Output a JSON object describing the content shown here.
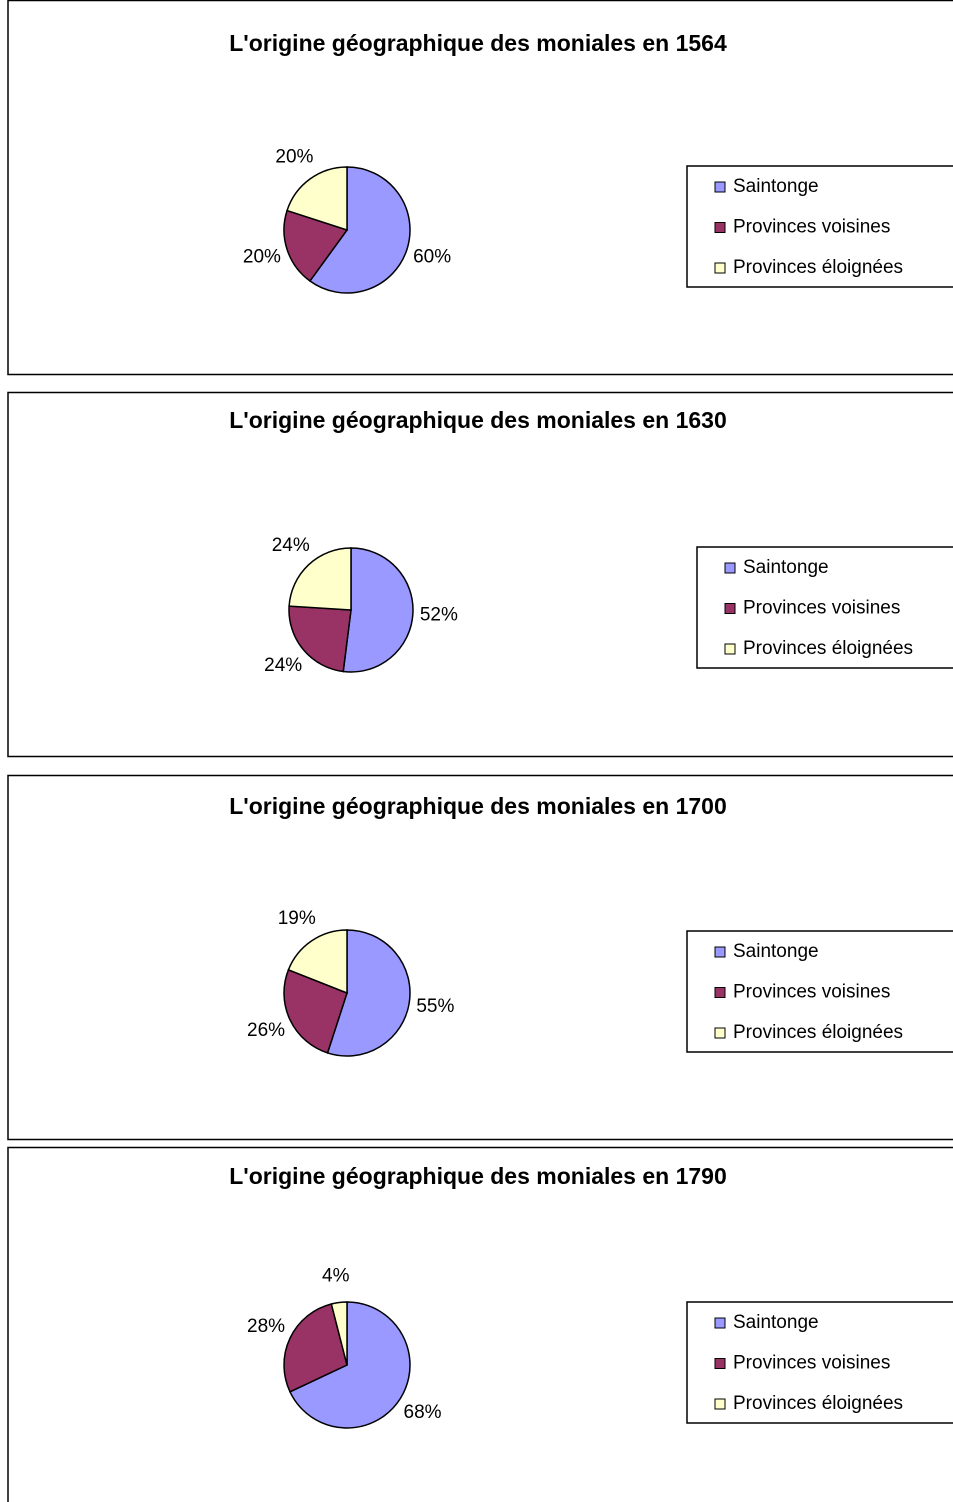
{
  "chart_data": [
    {
      "type": "pie",
      "title": "L'origine géographique des moniales en 1564",
      "categories": [
        "Saintonge",
        "Provinces voisines",
        "Provinces éloignées"
      ],
      "values": [
        60,
        20,
        20
      ],
      "value_labels": [
        "60%",
        "20%",
        "20%"
      ],
      "colors": [
        "#9999ff",
        "#993366",
        "#ffffcc"
      ],
      "legend": "right"
    },
    {
      "type": "pie",
      "title": "L'origine géographique des moniales en 1630",
      "categories": [
        "Saintonge",
        "Provinces voisines",
        "Provinces éloignées"
      ],
      "values": [
        52,
        24,
        24
      ],
      "value_labels": [
        "52%",
        "24%",
        "24%"
      ],
      "colors": [
        "#9999ff",
        "#993366",
        "#ffffcc"
      ],
      "legend": "right"
    },
    {
      "type": "pie",
      "title": "L'origine géographique des moniales en 1700",
      "categories": [
        "Saintonge",
        "Provinces voisines",
        "Provinces éloignées"
      ],
      "values": [
        55,
        26,
        19
      ],
      "value_labels": [
        "55%",
        "26%",
        "19%"
      ],
      "colors": [
        "#9999ff",
        "#993366",
        "#ffffcc"
      ],
      "legend": "right"
    },
    {
      "type": "pie",
      "title": "L'origine géographique des moniales en 1790",
      "categories": [
        "Saintonge",
        "Provinces voisines",
        "Provinces éloignées"
      ],
      "values": [
        68,
        28,
        4
      ],
      "value_labels": [
        "68%",
        "28%",
        "4%"
      ],
      "colors": [
        "#9999ff",
        "#993366",
        "#ffffcc"
      ],
      "legend": "right"
    }
  ]
}
